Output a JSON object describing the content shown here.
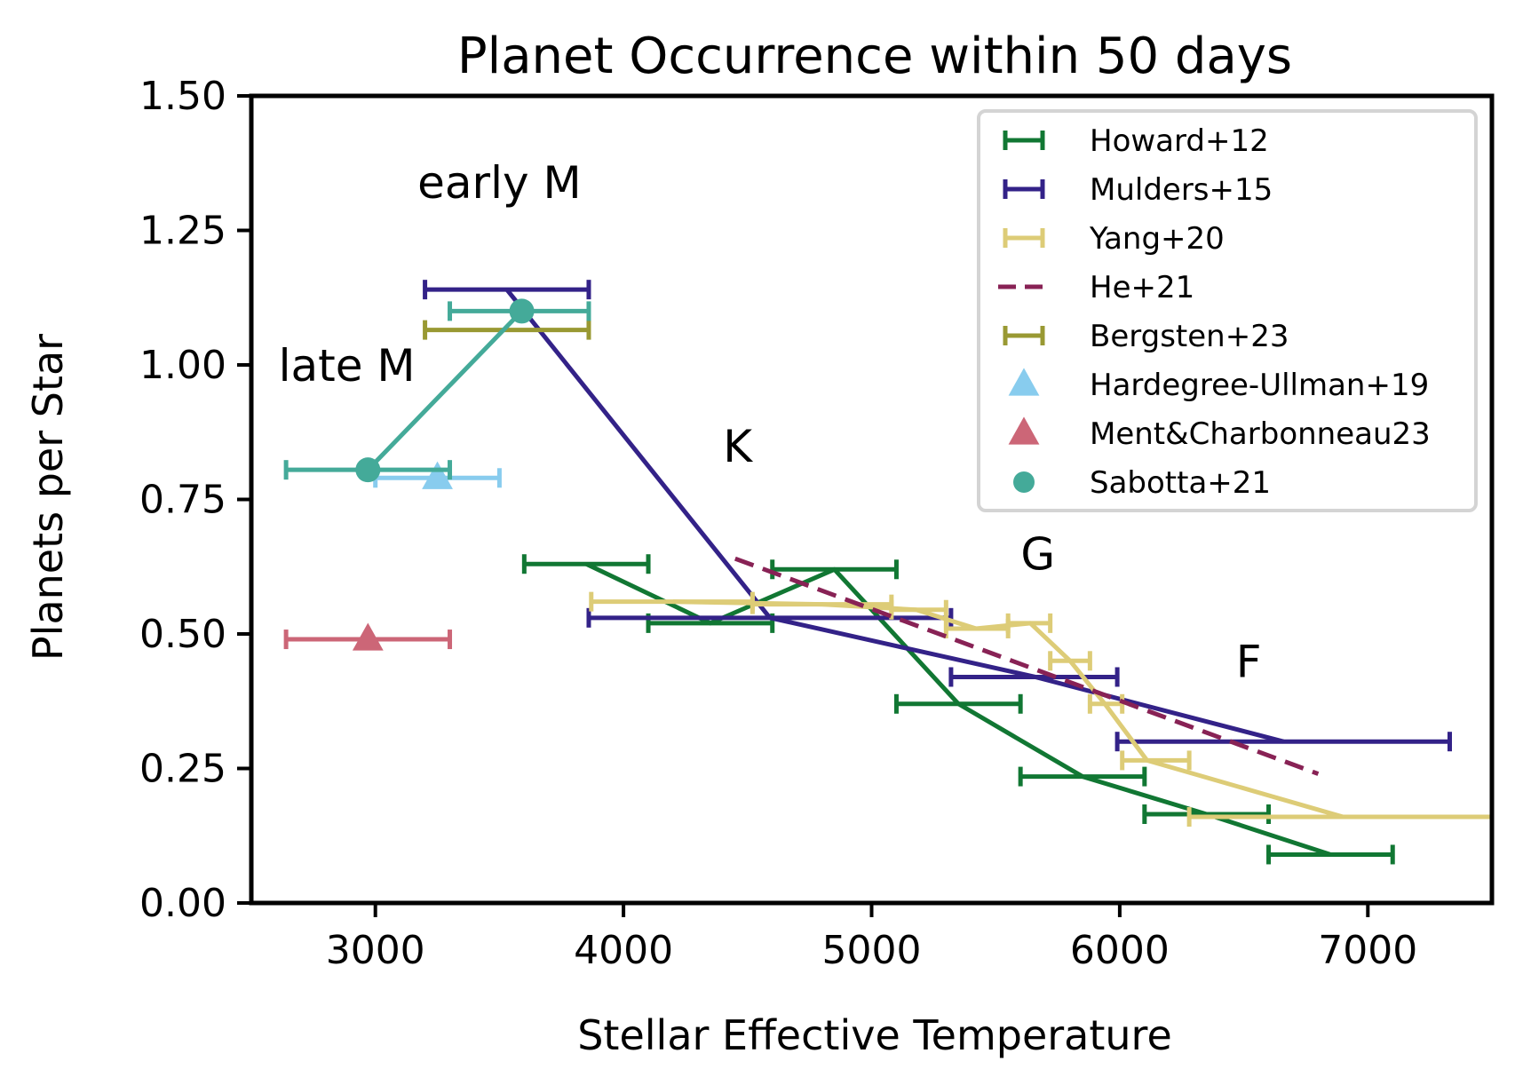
{
  "chart_data": {
    "type": "line",
    "title": "Planet Occurrence within 50 days",
    "xlabel": "Stellar Effective Temperature",
    "ylabel": "Planets per Star",
    "xlim": [
      2500,
      7500
    ],
    "ylim": [
      0,
      1.5
    ],
    "xticks": [
      "3000",
      "4000",
      "5000",
      "6000",
      "7000"
    ],
    "yticks": [
      "0.00",
      "0.25",
      "0.50",
      "0.75",
      "1.00",
      "1.25",
      "1.50"
    ],
    "grid": false,
    "legend_position": "top-right",
    "annotations": [
      {
        "text": "early M",
        "x": 3500,
        "y": 1.31
      },
      {
        "text": "late M",
        "x": 2885,
        "y": 0.97
      },
      {
        "text": "K",
        "x": 4460,
        "y": 0.82
      },
      {
        "text": "G",
        "x": 5670,
        "y": 0.62
      },
      {
        "text": "F",
        "x": 6520,
        "y": 0.42
      }
    ],
    "series": [
      {
        "name": "Howard+12",
        "color": "#117733",
        "style": "errorbar-line",
        "points": [
          {
            "x": 3850,
            "y": 0.63,
            "xlo": 3600,
            "xhi": 4100
          },
          {
            "x": 4350,
            "y": 0.52,
            "xlo": 4100,
            "xhi": 4600
          },
          {
            "x": 4850,
            "y": 0.62,
            "xlo": 4600,
            "xhi": 5100
          },
          {
            "x": 5350,
            "y": 0.37,
            "xlo": 5100,
            "xhi": 5600
          },
          {
            "x": 5850,
            "y": 0.235,
            "xlo": 5600,
            "xhi": 6100
          },
          {
            "x": 6350,
            "y": 0.165,
            "xlo": 6100,
            "xhi": 6600
          },
          {
            "x": 6850,
            "y": 0.09,
            "xlo": 6600,
            "xhi": 7100
          }
        ]
      },
      {
        "name": "Mulders+15",
        "color": "#332288",
        "style": "errorbar-line",
        "points": [
          {
            "x": 3530,
            "y": 1.14,
            "xlo": 3200,
            "xhi": 3860
          },
          {
            "x": 4590,
            "y": 0.53,
            "xlo": 3860,
            "xhi": 5320
          },
          {
            "x": 5660,
            "y": 0.42,
            "xlo": 5320,
            "xhi": 5990
          },
          {
            "x": 6660,
            "y": 0.3,
            "xlo": 5990,
            "xhi": 7330
          }
        ]
      },
      {
        "name": "Yang+20",
        "color": "#DDCC77",
        "style": "errorbar-line",
        "points": [
          {
            "x": 4200,
            "y": 0.56,
            "xlo": 3870,
            "xhi": 4520
          },
          {
            "x": 4800,
            "y": 0.555,
            "xlo": 4520,
            "xhi": 5080
          },
          {
            "x": 5180,
            "y": 0.545,
            "xlo": 5080,
            "xhi": 5300
          },
          {
            "x": 5420,
            "y": 0.51,
            "xlo": 5300,
            "xhi": 5550
          },
          {
            "x": 5640,
            "y": 0.52,
            "xlo": 5550,
            "xhi": 5720
          },
          {
            "x": 5800,
            "y": 0.45,
            "xlo": 5720,
            "xhi": 5880
          },
          {
            "x": 5940,
            "y": 0.37,
            "xlo": 5880,
            "xhi": 6010
          },
          {
            "x": 6110,
            "y": 0.265,
            "xlo": 6010,
            "xhi": 6280
          },
          {
            "x": 6900,
            "y": 0.16,
            "xlo": 6280,
            "xhi": 7520
          }
        ]
      },
      {
        "name": "He+21",
        "color": "#882255",
        "style": "dashed",
        "points": [
          {
            "x": 4450,
            "y": 0.64
          },
          {
            "x": 6800,
            "y": 0.24
          }
        ]
      },
      {
        "name": "Bergsten+23",
        "color": "#999933",
        "style": "errorbar",
        "points": [
          {
            "x": 3530,
            "y": 1.065,
            "xlo": 3200,
            "xhi": 3860
          }
        ]
      },
      {
        "name": "Hardegree-Ullman+19",
        "color": "#88CCEE",
        "style": "triangle",
        "points": [
          {
            "x": 3250,
            "y": 0.79,
            "xlo": 3000,
            "xhi": 3500
          }
        ]
      },
      {
        "name": "Ment&Charbonneau23",
        "color": "#CC6677",
        "style": "triangle",
        "points": [
          {
            "x": 2970,
            "y": 0.49,
            "xlo": 2640,
            "xhi": 3300
          }
        ]
      },
      {
        "name": "Sabotta+21",
        "color": "#44AA99",
        "style": "circle",
        "points": [
          {
            "x": 2970,
            "y": 0.805,
            "xlo": 2640,
            "xhi": 3300
          },
          {
            "x": 3590,
            "y": 1.1,
            "xlo": 3300,
            "xhi": 3860
          }
        ]
      }
    ]
  }
}
